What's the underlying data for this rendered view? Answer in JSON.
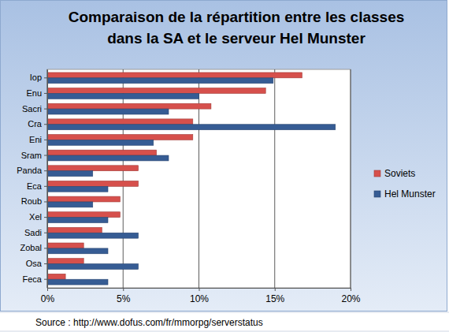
{
  "chart_data": {
    "type": "bar",
    "orientation": "horizontal",
    "title": "Comparaison de la répartition entre les classes dans la SA et le serveur Hel Munster",
    "annotation": "Source : http://www.dofus.com/fr/mmorpg/serverstatus",
    "categories": [
      "Iop",
      "Enu",
      "Sacri",
      "Cra",
      "Eni",
      "Sram",
      "Panda",
      "Eca",
      "Roub",
      "Xel",
      "Sadi",
      "Zobal",
      "Osa",
      "Feca"
    ],
    "series": [
      {
        "name": "Soviets",
        "color": "#d6504c",
        "values": [
          16.8,
          14.4,
          10.8,
          9.6,
          9.6,
          7.2,
          6,
          6,
          4.8,
          4.8,
          3.6,
          2.4,
          2.4,
          1.2
        ]
      },
      {
        "name": "Hel Munster",
        "color": "#365c94",
        "values": [
          14.9,
          10,
          8,
          19,
          7,
          8,
          3,
          4,
          3,
          4,
          6,
          4,
          6,
          4
        ]
      }
    ],
    "xlim": [
      0,
      20
    ],
    "xticks": [
      {
        "value": 0,
        "label": "0%"
      },
      {
        "value": 5,
        "label": "5%"
      },
      {
        "value": 10,
        "label": "10%"
      },
      {
        "value": 15,
        "label": "15%"
      },
      {
        "value": 20,
        "label": "20%"
      }
    ],
    "grid": true,
    "legend": "right"
  }
}
